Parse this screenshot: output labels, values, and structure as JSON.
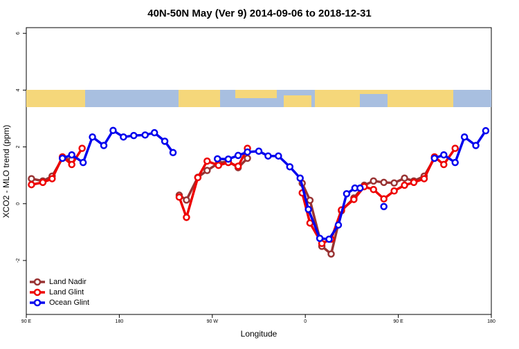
{
  "chart_data": {
    "type": "line",
    "title": "40N-50N May (Ver 9)   2014-09-06 to 2018-12-31",
    "x_label": "Longitude",
    "y_label": "XCO2 - MLO trend (ppm)",
    "xlim": [
      90,
      540
    ],
    "ylim": [
      -3.9,
      6.2
    ],
    "xticks": [
      {
        "value": 90,
        "label": "90 E"
      },
      180,
      {
        "value": 270,
        "label": "90 W"
      },
      {
        "value": 360,
        "label": "0"
      },
      {
        "value": 450,
        "label": "90 E"
      },
      180
    ],
    "yticks": [
      -2,
      0,
      2,
      4,
      6
    ],
    "legend": "bottom-left",
    "series": [
      {
        "name": "Land Nadir",
        "color": "#993333",
        "x": [
          95,
          106,
          115,
          125,
          134,
          null,
          238,
          245,
          256,
          265,
          276,
          285.5,
          295,
          304,
          null,
          357,
          364.5,
          376,
          385,
          395,
          407,
          417,
          426,
          436,
          446,
          456,
          465,
          475,
          485
        ],
        "values": [
          0.88,
          0.8,
          0.97,
          1.6,
          1.55,
          null,
          0.3,
          0.13,
          0.93,
          1.17,
          1.43,
          1.5,
          1.27,
          1.6,
          null,
          0.72,
          0.12,
          -1.5,
          -1.77,
          -0.25,
          0.2,
          0.65,
          0.8,
          0.75,
          0.73,
          0.9,
          0.8,
          0.97,
          1.6
        ]
      },
      {
        "name": "Land Glint",
        "color": "#ee0000",
        "x": [
          95,
          106,
          115,
          125,
          134,
          144,
          null,
          238,
          245,
          256,
          265,
          276,
          285.5,
          295,
          304,
          null,
          357,
          364.5,
          376,
          385,
          395,
          407,
          417,
          426,
          436,
          446,
          456,
          465,
          475,
          485,
          494,
          505
        ],
        "values": [
          0.67,
          0.75,
          0.88,
          1.65,
          1.38,
          1.95,
          null,
          0.23,
          -0.48,
          0.92,
          1.5,
          1.35,
          1.45,
          1.32,
          1.95,
          null,
          0.38,
          -0.68,
          -1.4,
          -1.25,
          -0.22,
          0.15,
          0.6,
          0.5,
          0.17,
          0.45,
          0.65,
          0.75,
          0.88,
          1.65,
          1.38,
          1.95
        ]
      },
      {
        "name": "Ocean Glint",
        "color": "#0000ee",
        "x": [
          125,
          134,
          145,
          154,
          165,
          174,
          184,
          194,
          205,
          214,
          224,
          232,
          null,
          275,
          285.5,
          295,
          304,
          315,
          324,
          334,
          345,
          355,
          363,
          374,
          383,
          392,
          400,
          408,
          413,
          null,
          436,
          null,
          485,
          494,
          505,
          514,
          525,
          534.6
        ],
        "values": [
          1.6,
          1.72,
          1.45,
          2.35,
          2.05,
          2.58,
          2.35,
          2.4,
          2.42,
          2.5,
          2.2,
          1.8,
          null,
          1.58,
          1.57,
          1.7,
          1.82,
          1.85,
          1.68,
          1.68,
          1.3,
          0.9,
          -0.2,
          -1.22,
          -1.25,
          -0.75,
          0.35,
          0.55,
          0.55,
          null,
          -0.1,
          null,
          1.6,
          1.72,
          1.45,
          2.35,
          2.05,
          2.57
        ]
      }
    ]
  }
}
